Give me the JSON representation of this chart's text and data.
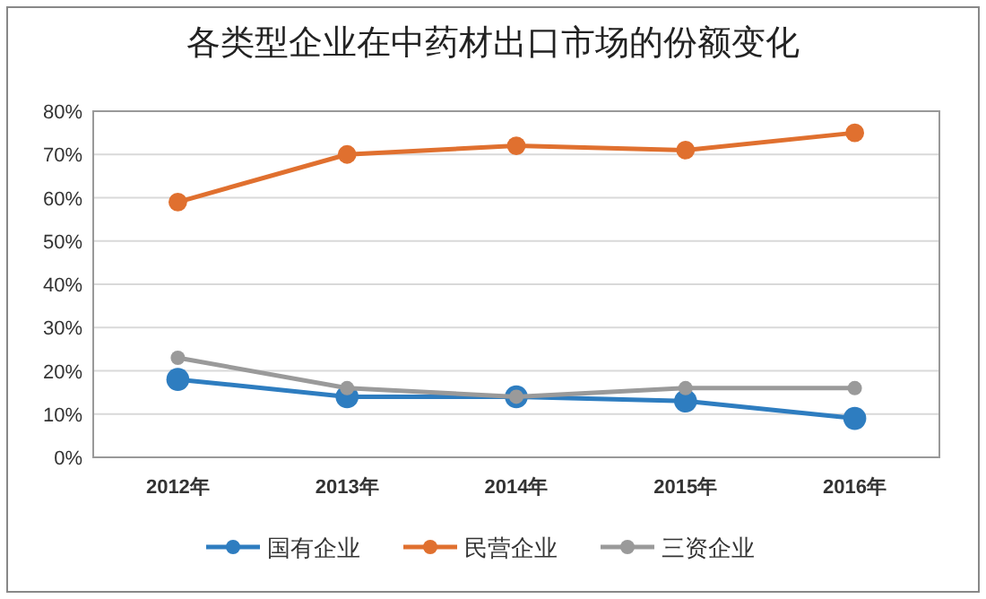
{
  "chart_data": {
    "type": "line",
    "title": "各类型企业在中药材出口市场的份额变化",
    "categories": [
      "2012年",
      "2013年",
      "2014年",
      "2015年",
      "2016年"
    ],
    "series": [
      {
        "name": "国有企业",
        "color": "#2e7dc0",
        "values": [
          18,
          14,
          14,
          13,
          9
        ]
      },
      {
        "name": "民营企业",
        "color": "#e0702f",
        "values": [
          59,
          70,
          72,
          71,
          75
        ]
      },
      {
        "name": "三资企业",
        "color": "#9a9a9a",
        "values": [
          23,
          16,
          14,
          16,
          16
        ]
      }
    ],
    "ylim": [
      0,
      80
    ],
    "yticks": [
      {
        "value": 0,
        "label": "0%"
      },
      {
        "value": 10,
        "label": "10%"
      },
      {
        "value": 20,
        "label": "20%"
      },
      {
        "value": 30,
        "label": "30%"
      },
      {
        "value": 40,
        "label": "40%"
      },
      {
        "value": 50,
        "label": "50%"
      },
      {
        "value": 60,
        "label": "60%"
      },
      {
        "value": 70,
        "label": "70%"
      },
      {
        "value": 80,
        "label": "80%"
      }
    ],
    "grid": "y",
    "legend": "bottom",
    "marker": "circle",
    "line_style": "solid"
  }
}
